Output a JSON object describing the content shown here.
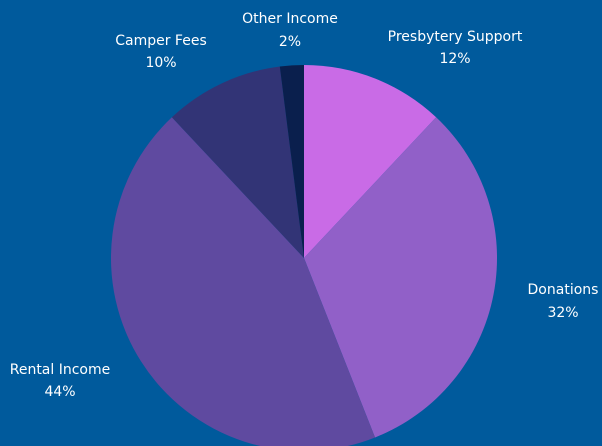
{
  "background_color": "#005a9c",
  "chart_data": {
    "type": "pie",
    "title": "",
    "start": "top",
    "direction": "clockwise",
    "legend": "none",
    "slices": [
      {
        "label": "Presbytery Support",
        "value": 12,
        "value_label": "12%",
        "color": "#c96be6"
      },
      {
        "label": "Donations",
        "value": 32,
        "value_label": "32%",
        "color": "#9160c8"
      },
      {
        "label": "Rental Income",
        "value": 44,
        "value_label": "44%",
        "color": "#5f4aa0"
      },
      {
        "label": "Camper Fees",
        "value": 10,
        "value_label": "10%",
        "color": "#323476"
      },
      {
        "label": "Other Income",
        "value": 2,
        "value_label": "2%",
        "color": "#0a1f4d"
      }
    ]
  }
}
